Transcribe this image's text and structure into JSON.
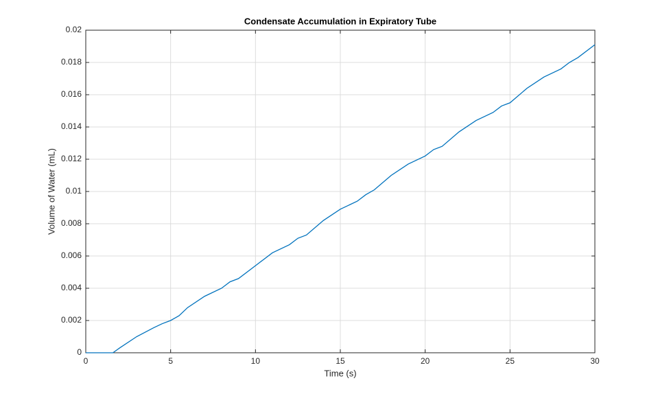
{
  "chart_data": {
    "type": "line",
    "title": "Condensate Accumulation in Expiratory Tube",
    "x_label": "Time (s)",
    "y_label": "Volume of Water (mL)",
    "x": [
      0,
      1,
      1.6,
      2,
      3,
      4,
      4.5,
      5,
      5.5,
      6,
      7,
      8,
      8.5,
      9,
      10,
      11,
      12,
      12.5,
      13,
      14,
      15,
      16,
      16.5,
      17,
      18,
      19,
      20,
      20.5,
      21,
      22,
      23,
      24,
      24.5,
      25,
      26,
      27,
      28,
      28.5,
      29,
      30
    ],
    "series": [
      {
        "color": "#0072bd",
        "values": [
          0,
          0,
          0,
          0.0003,
          0.001,
          0.00155,
          0.0018,
          0.002,
          0.0023,
          0.0028,
          0.0035,
          0.004,
          0.0044,
          0.0046,
          0.0054,
          0.0062,
          0.0067,
          0.0071,
          0.0073,
          0.0082,
          0.0089,
          0.0094,
          0.0098,
          0.0101,
          0.011,
          0.0117,
          0.0122,
          0.0126,
          0.0128,
          0.0137,
          0.0144,
          0.0149,
          0.0153,
          0.0155,
          0.0164,
          0.0171,
          0.0176,
          0.018,
          0.0183,
          0.0191
        ]
      }
    ],
    "xlim": [
      0,
      30
    ],
    "xticks": [
      0,
      5,
      10,
      15,
      20,
      25,
      30
    ],
    "ylim": [
      0,
      0.02
    ],
    "yticks": [
      0,
      0.002,
      0.004,
      0.006,
      0.008,
      0.01,
      0.012,
      0.014,
      0.016,
      0.018,
      0.02
    ],
    "grid": true
  }
}
